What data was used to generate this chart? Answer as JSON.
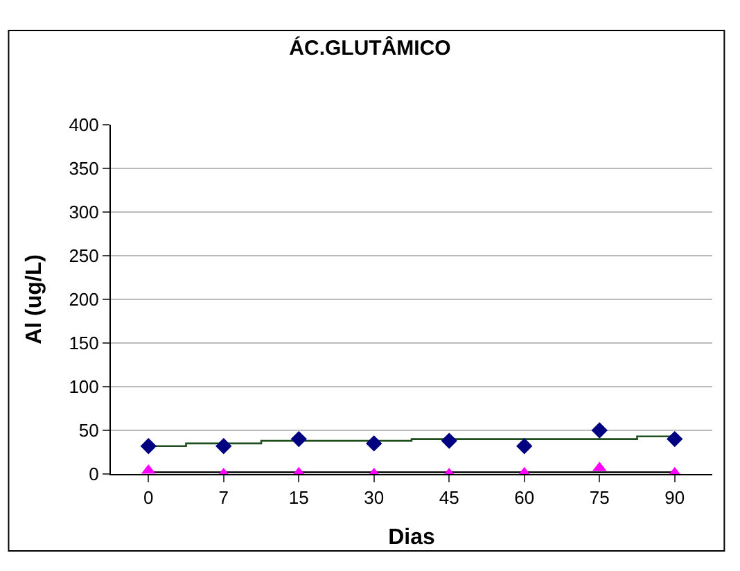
{
  "chart_data": {
    "type": "scatter",
    "title": "ÁC.GLUTÂMICO",
    "xlabel": "Dias",
    "ylabel": "Al (ug/L)",
    "categories": [
      "0",
      "7",
      "15",
      "30",
      "45",
      "60",
      "75",
      "90"
    ],
    "ylim": [
      0,
      400
    ],
    "yticks": [
      0,
      50,
      100,
      150,
      200,
      250,
      300,
      350,
      400
    ],
    "grid": "y",
    "series": [
      {
        "type": "step",
        "color": "#1e4d1e",
        "marker": "none",
        "values": [
          32,
          35,
          38,
          38,
          40,
          40,
          40,
          43
        ]
      },
      {
        "type": "line",
        "color": "#000000",
        "marker": "none",
        "values": [
          2,
          2,
          2,
          2,
          2,
          2,
          2,
          2
        ]
      },
      {
        "color": "#000080",
        "marker": "diamond",
        "values": [
          32,
          32,
          40,
          35,
          38,
          32,
          50,
          40
        ]
      },
      {
        "color": "#ff00ff",
        "marker": "triangle",
        "values": [
          4,
          0,
          1,
          0,
          0,
          1,
          7,
          1
        ]
      }
    ]
  }
}
